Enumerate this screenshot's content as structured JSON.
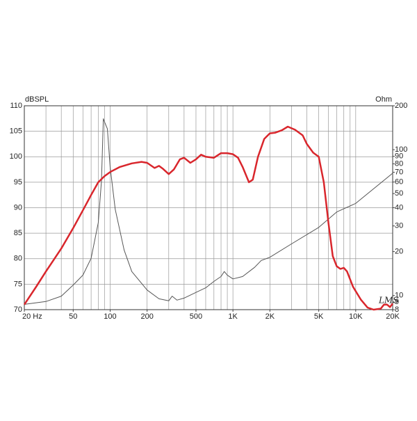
{
  "chart_data": {
    "type": "line",
    "y_label": "dBSPL",
    "y2_label": "Ohm",
    "watermark": "LMS",
    "xlog": true,
    "y2log": true,
    "grid": true,
    "xlim": [
      20,
      20000
    ],
    "xticks": [
      {
        "value": 20,
        "label": "20  Hz"
      },
      50,
      100,
      200,
      500,
      {
        "value": 1000,
        "label": "1K"
      },
      {
        "value": 2000,
        "label": "2K"
      },
      {
        "value": 5000,
        "label": "5K"
      },
      {
        "value": 10000,
        "label": "10K"
      },
      {
        "value": 20000,
        "label": "20K"
      }
    ],
    "xgrid": [
      30,
      40,
      50,
      60,
      70,
      80,
      90,
      100,
      200,
      300,
      400,
      500,
      600,
      700,
      800,
      900,
      1000,
      2000,
      3000,
      4000,
      5000,
      6000,
      7000,
      8000,
      9000,
      10000
    ],
    "ylim": [
      70,
      110
    ],
    "yticks": [
      70,
      75,
      80,
      85,
      90,
      95,
      100,
      105,
      110
    ],
    "y2lim": [
      8,
      200
    ],
    "y2ticks": [
      8,
      9,
      10,
      20,
      30,
      40,
      50,
      60,
      70,
      80,
      90,
      100,
      200
    ],
    "series": [
      {
        "color": "#d9262c",
        "x": [
          20,
          25,
          30,
          40,
          50,
          60,
          70,
          80,
          90,
          100,
          120,
          150,
          180,
          200,
          230,
          250,
          270,
          300,
          330,
          370,
          400,
          450,
          500,
          550,
          600,
          700,
          800,
          900,
          1000,
          1100,
          1200,
          1350,
          1450,
          1600,
          1800,
          2000,
          2200,
          2500,
          2800,
          3200,
          3700,
          4000,
          4500,
          5000,
          5500,
          6000,
          6500,
          7000,
          7500,
          8000,
          8500,
          9500,
          11000,
          12500,
          14000,
          16000,
          17000,
          18000,
          19000,
          20000
        ],
        "values": [
          71,
          74.5,
          77.5,
          82,
          86,
          89.5,
          92.5,
          95,
          96.2,
          97,
          98,
          98.7,
          99,
          98.8,
          97.8,
          98.2,
          97.6,
          96.6,
          97.5,
          99.5,
          99.8,
          98.8,
          99.5,
          100.4,
          100,
          99.8,
          100.7,
          100.7,
          100.5,
          99.8,
          98,
          95,
          95.5,
          100,
          103.5,
          104.6,
          104.7,
          105.2,
          105.9,
          105.3,
          104.2,
          102.5,
          100.8,
          100,
          95,
          87,
          80.5,
          78.5,
          78,
          78.2,
          77.5,
          74.5,
          72,
          70.4,
          70,
          70.2,
          71,
          71,
          70.5,
          71.2
        ]
      },
      {
        "color": "#555555",
        "axis": "y2",
        "x": [
          20,
          30,
          40,
          50,
          60,
          70,
          80,
          85,
          88,
          90,
          95,
          100,
          110,
          130,
          150,
          200,
          250,
          300,
          320,
          350,
          400,
          500,
          600,
          700,
          800,
          850,
          900,
          1000,
          1200,
          1500,
          1700,
          2000,
          3000,
          5000,
          7000,
          10000,
          20000
        ],
        "values": [
          8.7,
          9.1,
          9.9,
          11.8,
          13.8,
          18,
          31.6,
          61,
          163,
          155,
          139,
          76,
          39,
          20.5,
          14.6,
          10.9,
          9.5,
          9.2,
          9.9,
          9.3,
          9.6,
          10.5,
          11.3,
          12.5,
          13.5,
          14.6,
          13.8,
          13,
          13.5,
          15.6,
          17.4,
          18.3,
          22.6,
          29.3,
          37.4,
          42.8,
          69
        ]
      }
    ]
  }
}
